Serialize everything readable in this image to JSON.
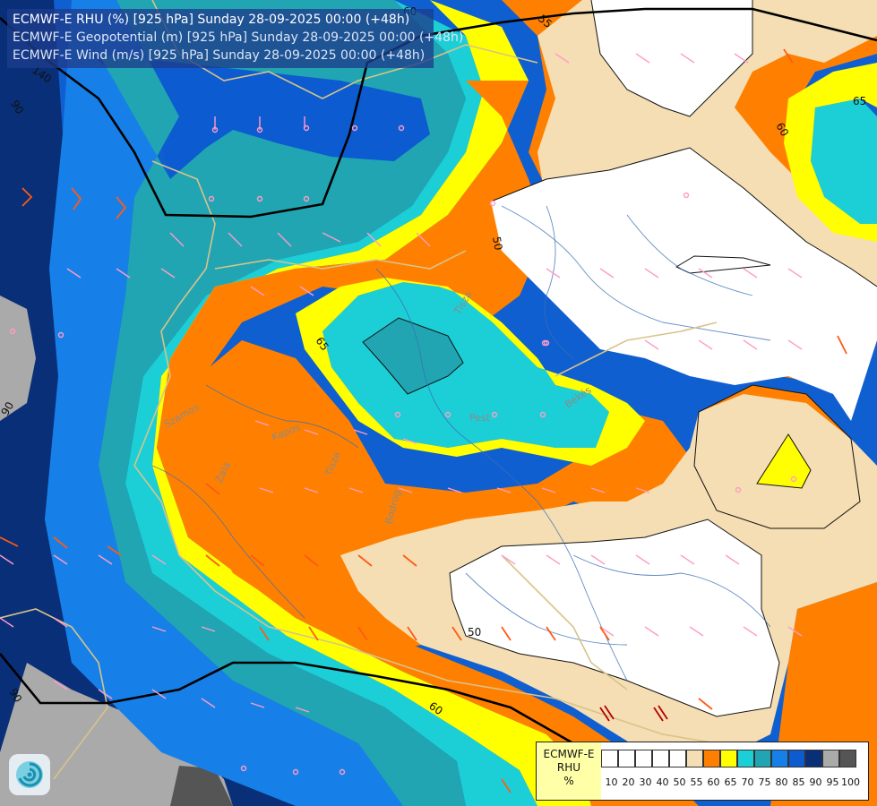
{
  "header": {
    "line1": "ECMWF-E RHU (%) [925 hPa] Sunday 28-09-2025 00:00 (+48h)",
    "line2": "ECMWF-E Geopotential (m) [925 hPa] Sunday 28-09-2025 00:00 (+48h)",
    "line3": "ECMWF-E Wind (m/s) [925 hPa] Sunday 28-09-2025 00:00 (+48h)"
  },
  "legend": {
    "title_lines": [
      "ECMWF-E",
      "RHU",
      "%"
    ],
    "ticks": [
      "10",
      "20",
      "30",
      "40",
      "50",
      "55",
      "60",
      "65",
      "70",
      "75",
      "80",
      "85",
      "90",
      "95",
      "100"
    ],
    "colors": [
      "#ffffff",
      "#ffffff",
      "#ffffff",
      "#ffffff",
      "#ffffff",
      "#f5deb3",
      "#ff8000",
      "#ffff00",
      "#1ccfd6",
      "#21a5b2",
      "#1780e8",
      "#0d5bd0",
      "#082f78",
      "#aaaaaa",
      "#555555"
    ]
  },
  "contour_labels": {
    "rhu_60_top": "60",
    "rhu_55_top": "55",
    "rhu_65_right": "65",
    "rhu_60_right": "60",
    "rhu_50_center": "50",
    "rhu_65_center": "65",
    "rhu_50_lower": "50",
    "rhu_60_bottom": "60",
    "rhu_90_left": "90",
    "rhu_90_mid_left": "90",
    "rhu_90_bottom_left": "90",
    "geo_140": "140"
  },
  "place_labels": {
    "tisza": "Tisza",
    "szamos": "Szamos",
    "bodrog": "Bodrog",
    "tisza_low": "Tisza",
    "zala": "Zala",
    "kapos": "Kapos",
    "pest": "Pest",
    "bekes": "Békés"
  },
  "colors": {
    "white": "#ffffff",
    "wheat": "#f5deb3",
    "orange": "#ff8000",
    "yellow": "#ffff00",
    "cyan": "#1ccfd6",
    "teal": "#21a5b2",
    "blue": "#1780e8",
    "deep_blue": "#0d5bd0",
    "navy": "#082f78",
    "grey": "#aaaaaa",
    "dark_grey": "#555555"
  },
  "logo": {
    "icon": "swirl-logo-icon"
  }
}
